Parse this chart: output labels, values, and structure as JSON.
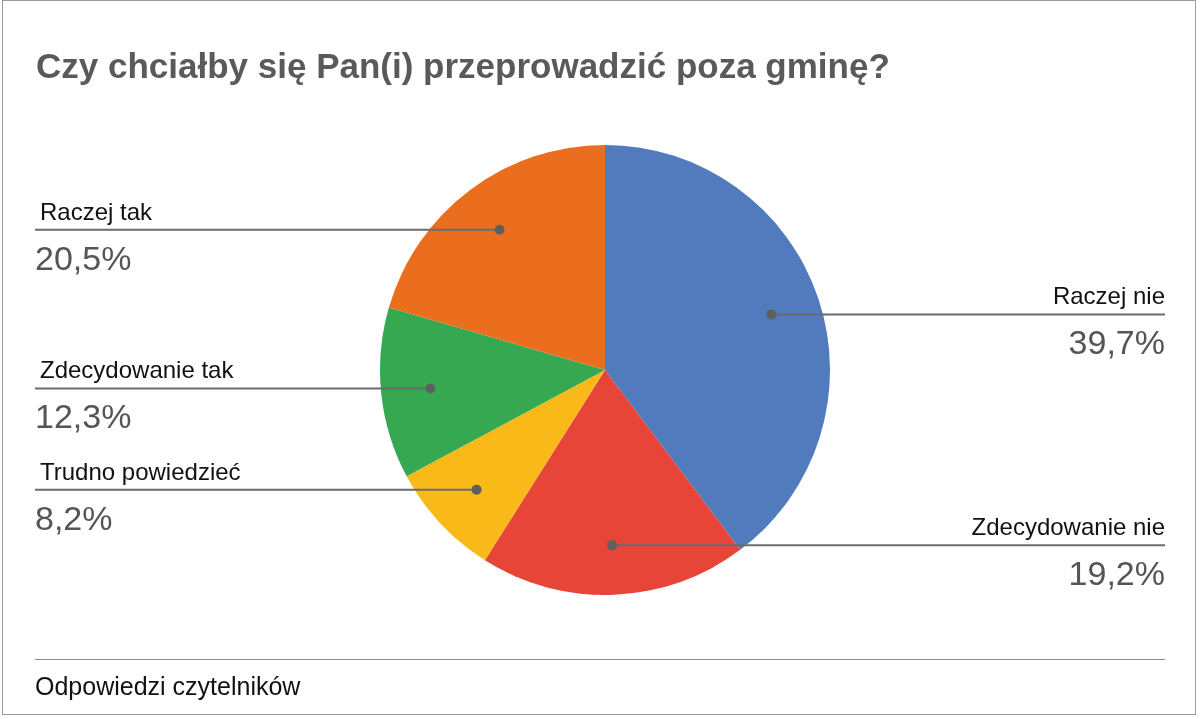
{
  "chart_data": {
    "type": "pie",
    "title": "Czy chciałby się Pan(i) przeprowadzić poza gminę?",
    "categories": [
      "Raczej nie",
      "Zdecydowanie nie",
      "Trudno powiedzieć",
      "Zdecydowanie tak",
      "Raczej tak"
    ],
    "values": [
      39.7,
      19.2,
      8.2,
      12.3,
      20.5
    ],
    "colors": [
      "#517bbd",
      "#e64537",
      "#f9b918",
      "#37a852",
      "#ea6e1e"
    ],
    "value_labels": [
      "39,7%",
      "19,2%",
      "8,2%",
      "12,3%",
      "20,5%"
    ],
    "annotations": [
      "Odpowiedzi czytelników"
    ]
  }
}
